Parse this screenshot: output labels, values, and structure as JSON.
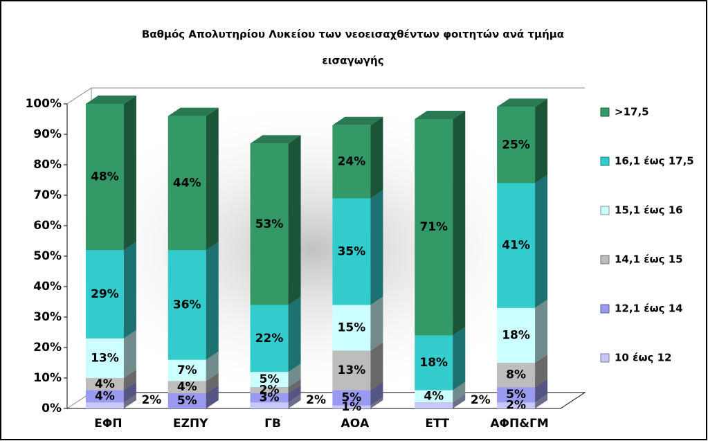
{
  "chart_data": {
    "type": "stacked_bar_3d",
    "title": [
      "Βαθμός Απολυτηρίου Λυκείου των νεοεισαχθέντων φοιτητών ανά τμήμα",
      "εισαγωγής"
    ],
    "categories": [
      "ΕΦΠ",
      "ΕΖΠΥ",
      "ΓΒ",
      "ΑΟΑ",
      "ΕΤΤ",
      "ΑΦΠ&ΓΜ"
    ],
    "series": [
      {
        "name": "10 έως 12",
        "color": "#c8c8f8",
        "values": [
          2,
          0,
          2,
          1,
          2,
          2
        ],
        "value_labels": [
          "2%",
          null,
          "2%",
          "1%",
          "2%",
          "2%"
        ]
      },
      {
        "name": "12,1 έως 14",
        "color": "#9a9af0",
        "values": [
          4,
          5,
          3,
          5,
          0,
          5
        ],
        "value_labels": [
          "4%",
          "5%",
          "3%",
          "5%",
          null,
          "5%"
        ]
      },
      {
        "name": "14,1 έως 15",
        "color": "#bdbdbd",
        "values": [
          4,
          4,
          2,
          13,
          0,
          8
        ],
        "value_labels": [
          "4%",
          "4%",
          "2%",
          "13%",
          null,
          "8%"
        ]
      },
      {
        "name": "15,1 έως 16",
        "color": "#ccffff",
        "values": [
          13,
          7,
          5,
          15,
          4,
          18
        ],
        "value_labels": [
          "13%",
          "7%",
          "5%",
          "15%",
          "4%",
          "18%"
        ]
      },
      {
        "name": "16,1 έως 17,5",
        "color": "#33cccc",
        "values": [
          29,
          36,
          22,
          35,
          18,
          41
        ],
        "value_labels": [
          "29%",
          "36%",
          "22%",
          "35%",
          "18%",
          "41%"
        ]
      },
      {
        "name": ">17,5",
        "color": "#339966",
        "values": [
          48,
          44,
          53,
          24,
          71,
          25
        ],
        "value_labels": [
          "48%",
          "44%",
          "53%",
          "24%",
          "71%",
          "25%"
        ]
      }
    ],
    "ylim": [
      0,
      100
    ],
    "yticks": [
      {
        "value": 0,
        "label": "0%"
      },
      {
        "value": 10,
        "label": "10%"
      },
      {
        "value": 20,
        "label": "20%"
      },
      {
        "value": 30,
        "label": "30%"
      },
      {
        "value": 40,
        "label": "40%"
      },
      {
        "value": 50,
        "label": "50%"
      },
      {
        "value": 60,
        "label": "60%"
      },
      {
        "value": 70,
        "label": "70%"
      },
      {
        "value": 80,
        "label": "80%"
      },
      {
        "value": 90,
        "label": "90%"
      },
      {
        "value": 100,
        "label": "100%"
      }
    ],
    "legend": "right"
  }
}
